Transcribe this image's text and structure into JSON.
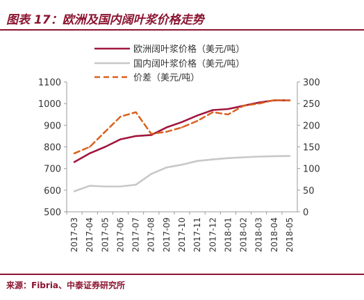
{
  "figure": {
    "title": "图表 17：欧洲及国内阔叶浆价格走势",
    "source": "来源：Fibria、中泰证券研究所"
  },
  "chart_data": {
    "type": "line",
    "categories": [
      "2017-03",
      "2017-04",
      "2017-05",
      "2017-06",
      "2017-07",
      "2017-08",
      "2017-09",
      "2017-10",
      "2017-11",
      "2017-12",
      "2018-01",
      "2018-02",
      "2018-03",
      "2018-04",
      "2018-05"
    ],
    "series": [
      {
        "name": "欧洲阔叶浆价格（美元/吨）",
        "axis": "left",
        "color": "#a0163c",
        "style": "solid",
        "values": [
          730,
          770,
          800,
          835,
          850,
          855,
          890,
          915,
          945,
          970,
          975,
          990,
          1005,
          1015,
          1015
        ]
      },
      {
        "name": "国内阔叶浆价格（美元/吨）",
        "axis": "left",
        "color": "#c8c8c8",
        "style": "solid",
        "values": [
          595,
          620,
          617,
          617,
          625,
          675,
          705,
          718,
          735,
          742,
          748,
          752,
          755,
          757,
          758
        ]
      },
      {
        "name": "价差（美元/吨）",
        "axis": "right",
        "color": "#d9601c",
        "style": "dashed",
        "values": [
          135,
          150,
          185,
          220,
          230,
          180,
          185,
          195,
          210,
          230,
          225,
          245,
          250,
          258,
          257
        ]
      }
    ],
    "y_left": {
      "min": 500,
      "max": 1100,
      "ticks": [
        500,
        600,
        700,
        800,
        900,
        1000,
        1100
      ]
    },
    "y_right": {
      "min": 0,
      "max": 300,
      "ticks": [
        0,
        50,
        100,
        150,
        200,
        250,
        300
      ]
    },
    "legend_position": "top",
    "grid": false
  }
}
